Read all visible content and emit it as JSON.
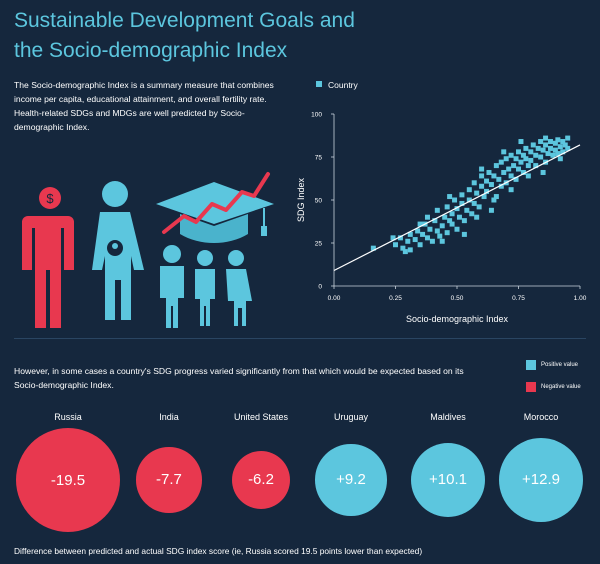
{
  "header": {
    "title_line1": "Sustainable Development Goals and",
    "title_line2": "the Socio-demographic Index"
  },
  "intro": {
    "text": "The Socio-demographic Index is a summary measure that combines income per capita, educational attainment, and overall fertility rate. Health-related SDGs and MDGs are well predicted by Socio-demographic Index."
  },
  "illustration": {
    "dollar_symbol": "$"
  },
  "lower_text": "However, in some cases a country's SDG progress varied significantly from that which would be expected based on its Socio-demographic Index.",
  "legend": {
    "positive_label": "Positive value",
    "negative_label": "Negative value"
  },
  "footnote": "Difference between predicted and actual SDG index score (ie, Russia scored 19.5 points lower than expected)",
  "colors": {
    "background": "#15273d",
    "accent": "#5cc6de",
    "positive": "#5cc6de",
    "negative": "#e8384f",
    "axis": "#c9d3de"
  },
  "chart_data": [
    {
      "type": "scatter",
      "title": "",
      "xlabel": "Socio-demographic Index",
      "ylabel": "SDG Index",
      "xlim": [
        0,
        1
      ],
      "ylim": [
        0,
        100
      ],
      "x_ticks": [
        "0.00",
        "0.25",
        "0.50",
        "0.75",
        "1.00"
      ],
      "y_ticks": [
        "0",
        "25",
        "50",
        "75",
        "100"
      ],
      "legend": "top-left",
      "series": [
        {
          "name": "Country",
          "points": [
            [
              0.16,
              22
            ],
            [
              0.24,
              28
            ],
            [
              0.25,
              24
            ],
            [
              0.27,
              28
            ],
            [
              0.28,
              22
            ],
            [
              0.29,
              20
            ],
            [
              0.3,
              26
            ],
            [
              0.31,
              30
            ],
            [
              0.33,
              27
            ],
            [
              0.34,
              32
            ],
            [
              0.35,
              24
            ],
            [
              0.36,
              30
            ],
            [
              0.37,
              36
            ],
            [
              0.38,
              28
            ],
            [
              0.38,
              40
            ],
            [
              0.39,
              33
            ],
            [
              0.4,
              26
            ],
            [
              0.41,
              38
            ],
            [
              0.42,
              32
            ],
            [
              0.42,
              44
            ],
            [
              0.43,
              29
            ],
            [
              0.44,
              35
            ],
            [
              0.45,
              40
            ],
            [
              0.46,
              46
            ],
            [
              0.46,
              31
            ],
            [
              0.47,
              38
            ],
            [
              0.48,
              42
            ],
            [
              0.48,
              36
            ],
            [
              0.49,
              50
            ],
            [
              0.5,
              33
            ],
            [
              0.5,
              45
            ],
            [
              0.51,
              40
            ],
            [
              0.52,
              53
            ],
            [
              0.52,
              48
            ],
            [
              0.53,
              38
            ],
            [
              0.54,
              44
            ],
            [
              0.55,
              56
            ],
            [
              0.55,
              50
            ],
            [
              0.56,
              42
            ],
            [
              0.57,
              48
            ],
            [
              0.57,
              60
            ],
            [
              0.58,
              54
            ],
            [
              0.59,
              46
            ],
            [
              0.6,
              58
            ],
            [
              0.6,
              64
            ],
            [
              0.61,
              52
            ],
            [
              0.62,
              61
            ],
            [
              0.62,
              55
            ],
            [
              0.63,
              66
            ],
            [
              0.64,
              59
            ],
            [
              0.65,
              50
            ],
            [
              0.65,
              64
            ],
            [
              0.66,
              70
            ],
            [
              0.67,
              62
            ],
            [
              0.68,
              58
            ],
            [
              0.68,
              72
            ],
            [
              0.69,
              66
            ],
            [
              0.7,
              60
            ],
            [
              0.7,
              74
            ],
            [
              0.71,
              68
            ],
            [
              0.72,
              64
            ],
            [
              0.72,
              76
            ],
            [
              0.73,
              70
            ],
            [
              0.74,
              62
            ],
            [
              0.74,
              74
            ],
            [
              0.75,
              78
            ],
            [
              0.75,
              68
            ],
            [
              0.76,
              72
            ],
            [
              0.77,
              76
            ],
            [
              0.77,
              66
            ],
            [
              0.78,
              80
            ],
            [
              0.78,
              74
            ],
            [
              0.79,
              70
            ],
            [
              0.8,
              78
            ],
            [
              0.8,
              73
            ],
            [
              0.81,
              82
            ],
            [
              0.82,
              76
            ],
            [
              0.82,
              70
            ],
            [
              0.83,
              80
            ],
            [
              0.84,
              84
            ],
            [
              0.84,
              75
            ],
            [
              0.85,
              79
            ],
            [
              0.86,
              82
            ],
            [
              0.86,
              72
            ],
            [
              0.87,
              77
            ],
            [
              0.88,
              84
            ],
            [
              0.88,
              80
            ],
            [
              0.89,
              76
            ],
            [
              0.9,
              83
            ],
            [
              0.9,
              79
            ],
            [
              0.91,
              85
            ],
            [
              0.92,
              81
            ],
            [
              0.93,
              78
            ],
            [
              0.93,
              84
            ],
            [
              0.94,
              82
            ],
            [
              0.95,
              80
            ],
            [
              0.95,
              86
            ],
            [
              0.92,
              74
            ],
            [
              0.64,
              44
            ],
            [
              0.58,
              40
            ],
            [
              0.53,
              30
            ],
            [
              0.44,
              26
            ],
            [
              0.72,
              56
            ],
            [
              0.79,
              64
            ],
            [
              0.66,
              52
            ],
            [
              0.35,
              36
            ],
            [
              0.47,
              52
            ],
            [
              0.6,
              68
            ],
            [
              0.85,
              66
            ],
            [
              0.76,
              84
            ],
            [
              0.69,
              78
            ],
            [
              0.31,
              21
            ],
            [
              0.86,
              86
            ],
            [
              0.91,
              77
            ]
          ]
        }
      ],
      "trend_line": {
        "x": [
          0.0,
          1.0
        ],
        "y": [
          9,
          82
        ]
      }
    },
    {
      "type": "bubble",
      "title": "",
      "legend": "right",
      "categories": [
        "Russia",
        "India",
        "United States",
        "Uruguay",
        "Maldives",
        "Morocco"
      ],
      "values": [
        -19.5,
        -7.7,
        -6.2,
        9.2,
        10.1,
        12.9
      ],
      "value_labels": [
        "-19.5",
        "-7.7",
        "-6.2",
        "+9.2",
        "+10.1",
        "+12.9"
      ]
    }
  ]
}
